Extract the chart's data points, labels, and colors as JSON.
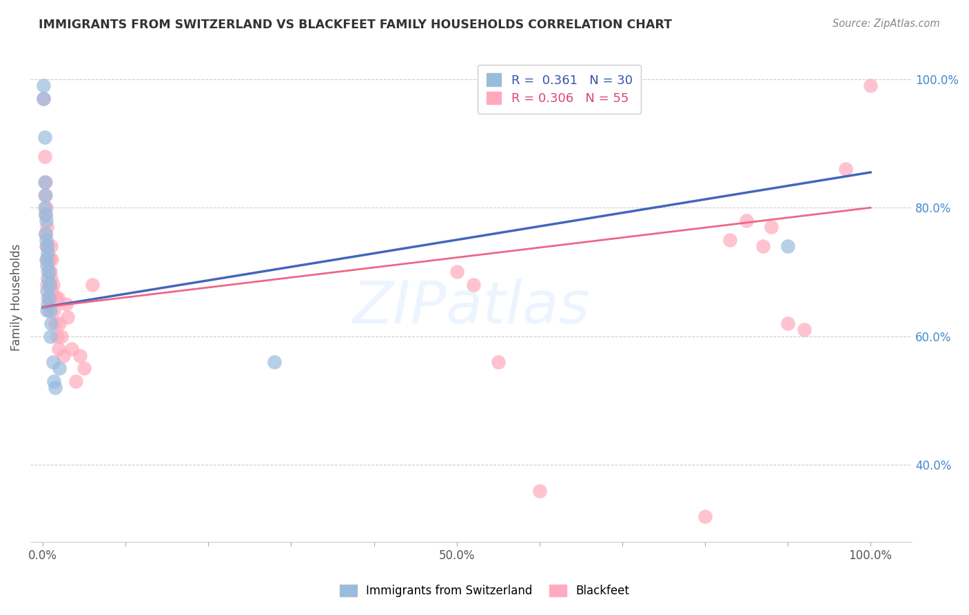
{
  "title": "IMMIGRANTS FROM SWITZERLAND VS BLACKFEET FAMILY HOUSEHOLDS CORRELATION CHART",
  "source": "Source: ZipAtlas.com",
  "ylabel": "Family Households",
  "blue_color": "#99BBDD",
  "pink_color": "#FFAABC",
  "blue_line_color": "#4466BB",
  "pink_line_color": "#EE6688",
  "watermark_text": "ZIPatlas",
  "swiss_x": [
    0.001,
    0.001,
    0.002,
    0.002,
    0.002,
    0.003,
    0.003,
    0.003,
    0.004,
    0.004,
    0.004,
    0.005,
    0.005,
    0.005,
    0.005,
    0.006,
    0.006,
    0.006,
    0.007,
    0.007,
    0.008,
    0.009,
    0.009,
    0.01,
    0.012,
    0.013,
    0.015,
    0.02,
    0.28,
    0.9
  ],
  "swiss_y": [
    0.97,
    0.99,
    0.91,
    0.84,
    0.8,
    0.82,
    0.79,
    0.76,
    0.78,
    0.75,
    0.72,
    0.74,
    0.71,
    0.67,
    0.64,
    0.73,
    0.69,
    0.65,
    0.7,
    0.66,
    0.68,
    0.64,
    0.6,
    0.62,
    0.56,
    0.53,
    0.52,
    0.55,
    0.56,
    0.74
  ],
  "blackfeet_x": [
    0.001,
    0.002,
    0.002,
    0.003,
    0.003,
    0.003,
    0.004,
    0.004,
    0.005,
    0.005,
    0.005,
    0.006,
    0.006,
    0.006,
    0.007,
    0.007,
    0.007,
    0.008,
    0.008,
    0.009,
    0.009,
    0.01,
    0.01,
    0.011,
    0.011,
    0.012,
    0.013,
    0.015,
    0.016,
    0.017,
    0.018,
    0.019,
    0.02,
    0.022,
    0.025,
    0.028,
    0.03,
    0.035,
    0.04,
    0.045,
    0.05,
    0.06,
    0.5,
    0.52,
    0.55,
    0.6,
    0.8,
    0.83,
    0.85,
    0.87,
    0.88,
    0.9,
    0.92,
    0.97,
    1.0
  ],
  "blackfeet_y": [
    0.97,
    0.88,
    0.82,
    0.84,
    0.79,
    0.76,
    0.8,
    0.74,
    0.77,
    0.72,
    0.68,
    0.74,
    0.7,
    0.66,
    0.72,
    0.68,
    0.64,
    0.72,
    0.68,
    0.7,
    0.66,
    0.74,
    0.69,
    0.72,
    0.67,
    0.68,
    0.64,
    0.62,
    0.66,
    0.6,
    0.66,
    0.58,
    0.62,
    0.6,
    0.57,
    0.65,
    0.63,
    0.58,
    0.53,
    0.57,
    0.55,
    0.68,
    0.7,
    0.68,
    0.56,
    0.36,
    0.32,
    0.75,
    0.78,
    0.74,
    0.77,
    0.62,
    0.61,
    0.86,
    0.99
  ],
  "y_tick_values_right": [
    0.4,
    0.6,
    0.8,
    1.0
  ],
  "y_tick_labels_right": [
    "40.0%",
    "60.0%",
    "80.0%",
    "100.0%"
  ],
  "x_tick_positions": [
    0.0,
    0.1,
    0.2,
    0.3,
    0.4,
    0.5,
    0.6,
    0.7,
    0.8,
    0.9,
    1.0
  ],
  "x_tick_labels": [
    "0.0%",
    "",
    "",
    "",
    "",
    "50.0%",
    "",
    "",
    "",
    "",
    "100.0%"
  ],
  "ylim": [
    0.28,
    1.04
  ],
  "xlim": [
    -0.015,
    1.05
  ],
  "blue_line_x0": 0.0,
  "blue_line_y0": 0.645,
  "blue_line_x1": 1.0,
  "blue_line_y1": 0.855,
  "pink_line_x0": 0.0,
  "pink_line_y0": 0.645,
  "pink_line_x1": 1.0,
  "pink_line_y1": 0.8,
  "figsize": [
    14.06,
    8.92
  ],
  "dpi": 100
}
